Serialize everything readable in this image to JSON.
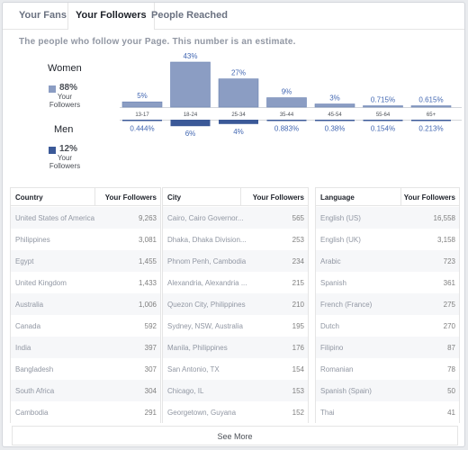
{
  "tabs": [
    {
      "label": "Your Fans"
    },
    {
      "label": "Your Followers"
    },
    {
      "label": "People Reached"
    }
  ],
  "subtitle": "The people who follow your Page. This number is an estimate.",
  "colors": {
    "women": "#8b9dc3",
    "men": "#3b5998",
    "accent": "#4267b2"
  },
  "women": {
    "label": "Women",
    "pct": "88%",
    "sub": "Your\nFollowers"
  },
  "men": {
    "label": "Men",
    "pct": "12%",
    "sub": "Your\nFollowers"
  },
  "chart_data": {
    "type": "bar",
    "categories": [
      "13-17",
      "18-24",
      "25-34",
      "35-44",
      "45-54",
      "55-64",
      "65+"
    ],
    "series": [
      {
        "name": "Women",
        "values": [
          5,
          43,
          27,
          9,
          3,
          0.715,
          0.615
        ],
        "labels": [
          "5%",
          "43%",
          "27%",
          "9%",
          "3%",
          "0.715%",
          "0.615%"
        ]
      },
      {
        "name": "Men",
        "values": [
          0.444,
          6,
          4,
          0.883,
          0.38,
          0.154,
          0.213
        ],
        "labels": [
          "0.444%",
          "6%",
          "4%",
          "0.883%",
          "0.38%",
          "0.154%",
          "0.213%"
        ]
      }
    ]
  },
  "tables": [
    {
      "header": [
        "Country",
        "Your Followers"
      ],
      "rows": [
        [
          "United States of America",
          "9,263"
        ],
        [
          "Philippines",
          "3,081"
        ],
        [
          "Egypt",
          "1,455"
        ],
        [
          "United Kingdom",
          "1,433"
        ],
        [
          "Australia",
          "1,006"
        ],
        [
          "Canada",
          "592"
        ],
        [
          "India",
          "397"
        ],
        [
          "Bangladesh",
          "307"
        ],
        [
          "South Africa",
          "304"
        ],
        [
          "Cambodia",
          "291"
        ]
      ]
    },
    {
      "header": [
        "City",
        "Your Followers"
      ],
      "rows": [
        [
          "Cairo, Cairo Governor...",
          "565"
        ],
        [
          "Dhaka, Dhaka Division...",
          "253"
        ],
        [
          "Phnom Penh, Cambodia",
          "234"
        ],
        [
          "Alexandria, Alexandria ...",
          "215"
        ],
        [
          "Quezon City, Philippines",
          "210"
        ],
        [
          "Sydney, NSW, Australia",
          "195"
        ],
        [
          "Manila, Philippines",
          "176"
        ],
        [
          "San Antonio, TX",
          "154"
        ],
        [
          "Chicago, IL",
          "153"
        ],
        [
          "Georgetown, Guyana",
          "152"
        ]
      ]
    },
    {
      "header": [
        "Language",
        "Your Followers"
      ],
      "rows": [
        [
          "English (US)",
          "16,558"
        ],
        [
          "English (UK)",
          "3,158"
        ],
        [
          "Arabic",
          "723"
        ],
        [
          "Spanish",
          "361"
        ],
        [
          "French (France)",
          "275"
        ],
        [
          "Dutch",
          "270"
        ],
        [
          "Filipino",
          "87"
        ],
        [
          "Romanian",
          "78"
        ],
        [
          "Spanish (Spain)",
          "50"
        ],
        [
          "Thai",
          "41"
        ]
      ]
    }
  ],
  "see_more": "See More"
}
